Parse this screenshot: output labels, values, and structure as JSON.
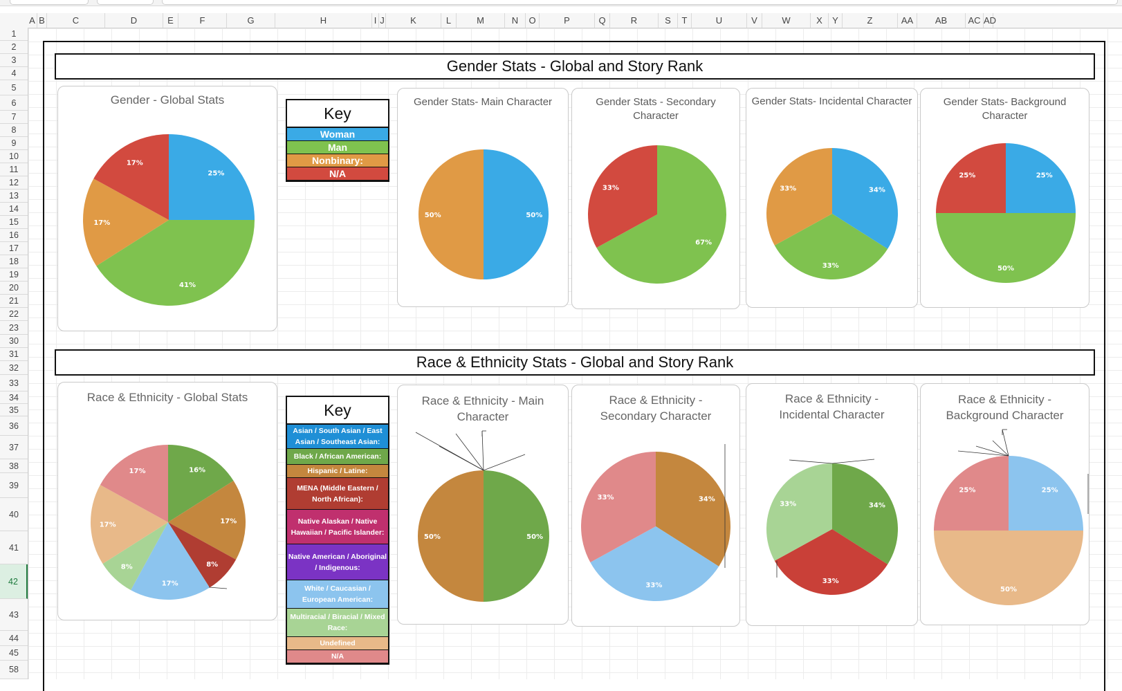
{
  "gender_section": {
    "banner": "Gender Stats - Global and Story Rank",
    "key_title": "Key",
    "key_items": [
      {
        "label": "Woman",
        "color": "#3aaae6"
      },
      {
        "label": "Man",
        "color": "#7fc24f"
      },
      {
        "label": "Nonbinary:",
        "color": "#e09a45"
      },
      {
        "label": "N/A",
        "color": "#d24a3f"
      }
    ]
  },
  "race_section": {
    "banner": "Race & Ethnicity Stats - Global and Story Rank",
    "key_title": "Key",
    "key_items": [
      {
        "label": "Asian / South Asian / East Asian / Southeast Asian:",
        "color": "#1f8fd6"
      },
      {
        "label": "Black / African American:",
        "color": "#6fa84a"
      },
      {
        "label": "Hispanic / Latine:",
        "color": "#c4873e"
      },
      {
        "label": "MENA (Middle Eastern / North African):",
        "color": "#b03d32"
      },
      {
        "label": "Native Alaskan / Native Hawaiian / Pacific Islander:",
        "color": "#c0306e"
      },
      {
        "label": "Native American / Aboriginal / Indigenous:",
        "color": "#7b33c4"
      },
      {
        "label": "White / Caucasian / European American:",
        "color": "#8cc4ee"
      },
      {
        "label": "Multiracial / Biracial / Mixed Race:",
        "color": "#a8d495"
      },
      {
        "label": "Undefined",
        "color": "#e8b989"
      },
      {
        "label": "N/A",
        "color": "#e0898a"
      }
    ]
  },
  "spreadsheet": {
    "columns": [
      "A",
      "B",
      "C",
      "D",
      "E",
      "F",
      "G",
      "H",
      "I",
      "J",
      "K",
      "L",
      "M",
      "N",
      "O",
      "P",
      "Q",
      "R",
      "S",
      "T",
      "U",
      "V",
      "W",
      "X",
      "Y",
      "Z",
      "AA",
      "AB",
      "AC",
      "AD"
    ],
    "rows": [
      "1",
      "2",
      "3",
      "4",
      "5",
      "6",
      "7",
      "8",
      "9",
      "10",
      "11",
      "12",
      "13",
      "14",
      "15",
      "16",
      "17",
      "18",
      "19",
      "20",
      "21",
      "22",
      "23",
      "30",
      "31",
      "32",
      "33",
      "34",
      "35",
      "36",
      "37",
      "38",
      "39",
      "40",
      "41",
      "42",
      "43",
      "44",
      "45",
      "58"
    ],
    "selected_row": "42"
  },
  "chart_data": [
    {
      "type": "pie",
      "title": "Gender - Global Stats",
      "slices": [
        {
          "label": "Woman",
          "value": 25,
          "text": "25%",
          "color": "#3aaae6"
        },
        {
          "label": "Man",
          "value": 41,
          "text": "41%",
          "color": "#7fc24f"
        },
        {
          "label": "Nonbinary",
          "value": 17,
          "text": "17%",
          "color": "#e09a45"
        },
        {
          "label": "N/A",
          "value": 17,
          "text": "17%",
          "color": "#d24a3f"
        }
      ]
    },
    {
      "type": "pie",
      "title": "Gender Stats- Main Character",
      "slices": [
        {
          "label": "Woman",
          "value": 50,
          "text": "50%",
          "color": "#3aaae6"
        },
        {
          "label": "Nonbinary",
          "value": 50,
          "text": "50%",
          "color": "#e09a45"
        }
      ]
    },
    {
      "type": "pie",
      "title": "Gender Stats - Secondary Character",
      "slices": [
        {
          "label": "Man",
          "value": 67,
          "text": "67%",
          "color": "#7fc24f"
        },
        {
          "label": "N/A",
          "value": 33,
          "text": "33%",
          "color": "#d24a3f"
        }
      ]
    },
    {
      "type": "pie",
      "title": "Gender Stats- Incidental Character",
      "slices": [
        {
          "label": "Woman",
          "value": 34,
          "text": "34%",
          "color": "#3aaae6"
        },
        {
          "label": "Man",
          "value": 33,
          "text": "33%",
          "color": "#7fc24f"
        },
        {
          "label": "Nonbinary",
          "value": 33,
          "text": "33%",
          "color": "#e09a45"
        }
      ]
    },
    {
      "type": "pie",
      "title": "Gender Stats- Background Character",
      "slices": [
        {
          "label": "Woman",
          "value": 25,
          "text": "25%",
          "color": "#3aaae6"
        },
        {
          "label": "Man",
          "value": 50,
          "text": "50%",
          "color": "#7fc24f"
        },
        {
          "label": "N/A",
          "value": 25,
          "text": "25%",
          "color": "#d24a3f"
        }
      ]
    },
    {
      "type": "pie",
      "title": "Race & Ethnicity - Global Stats",
      "slices": [
        {
          "label": "Black / African American",
          "value": 16,
          "text": "16%",
          "color": "#6fa84a"
        },
        {
          "label": "Hispanic / Latine",
          "value": 17,
          "text": "17%",
          "color": "#c4873e"
        },
        {
          "label": "MENA",
          "value": 8,
          "text": "8%",
          "color": "#b03d32"
        },
        {
          "label": "White / Caucasian / European American",
          "value": 17,
          "text": "17%",
          "color": "#8cc4ee"
        },
        {
          "label": "Multiracial / Biracial / Mixed Race",
          "value": 8,
          "text": "8%",
          "color": "#a8d495"
        },
        {
          "label": "Undefined",
          "value": 17,
          "text": "17%",
          "color": "#e8b989"
        },
        {
          "label": "N/A",
          "value": 17,
          "text": "17%",
          "color": "#e0898a"
        }
      ]
    },
    {
      "type": "pie",
      "title": "Race & Ethnicity - Main Character",
      "slices": [
        {
          "label": "Black / African American",
          "value": 50,
          "text": "50%",
          "color": "#6fa84a"
        },
        {
          "label": "Hispanic / Latine",
          "value": 50,
          "text": "50%",
          "color": "#c4873e"
        }
      ]
    },
    {
      "type": "pie",
      "title": "Race & Ethnicity - Secondary Character",
      "slices": [
        {
          "label": "Hispanic / Latine",
          "value": 34,
          "text": "34%",
          "color": "#c4873e"
        },
        {
          "label": "White / Caucasian / European American",
          "value": 33,
          "text": "33%",
          "color": "#8cc4ee"
        },
        {
          "label": "N/A",
          "value": 33,
          "text": "33%",
          "color": "#e0898a"
        }
      ]
    },
    {
      "type": "pie",
      "title": "Race & Ethnicity - Incidental Character",
      "slices": [
        {
          "label": "Black / African American",
          "value": 34,
          "text": "34%",
          "color": "#6fa84a"
        },
        {
          "label": "MENA",
          "value": 33,
          "text": "33%",
          "color": "#c94038"
        },
        {
          "label": "Multiracial / Biracial / Mixed Race",
          "value": 33,
          "text": "33%",
          "color": "#a8d495"
        }
      ]
    },
    {
      "type": "pie",
      "title": "Race & Ethnicity - Background Character",
      "slices": [
        {
          "label": "White / Caucasian / European American",
          "value": 25,
          "text": "25%",
          "color": "#8cc4ee"
        },
        {
          "label": "Undefined",
          "value": 50,
          "text": "50%",
          "color": "#e8b989"
        },
        {
          "label": "N/A",
          "value": 25,
          "text": "25%",
          "color": "#e0898a"
        }
      ]
    }
  ]
}
